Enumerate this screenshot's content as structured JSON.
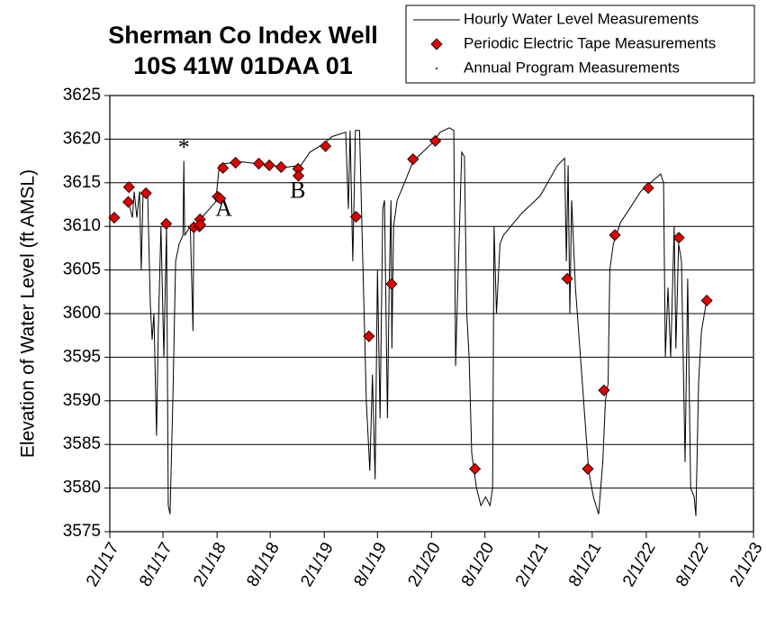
{
  "chart_data": {
    "type": "line",
    "title": [
      "Sherman Co Index Well",
      "10S 41W 01DAA 01"
    ],
    "y_label": "Elevation of Water Level (ft AMSL)",
    "xlim": [
      "2017-02-01",
      "2023-02-01"
    ],
    "xticks": [
      {
        "value": "2017-02-01",
        "label": "2/1/17"
      },
      {
        "value": "2017-08-01",
        "label": "8/1/17"
      },
      {
        "value": "2018-02-01",
        "label": "2/1/18"
      },
      {
        "value": "2018-08-01",
        "label": "8/1/18"
      },
      {
        "value": "2019-02-01",
        "label": "2/1/19"
      },
      {
        "value": "2019-08-01",
        "label": "8/1/19"
      },
      {
        "value": "2020-02-01",
        "label": "2/1/20"
      },
      {
        "value": "2020-08-01",
        "label": "8/1/20"
      },
      {
        "value": "2021-02-01",
        "label": "2/1/21"
      },
      {
        "value": "2021-08-01",
        "label": "8/1/21"
      },
      {
        "value": "2022-02-01",
        "label": "2/1/22"
      },
      {
        "value": "2022-08-01",
        "label": "8/1/22"
      },
      {
        "value": "2023-02-01",
        "label": "2/1/23"
      }
    ],
    "ylim": [
      3575,
      3625
    ],
    "yticks": [
      3575,
      3580,
      3585,
      3590,
      3595,
      3600,
      3605,
      3610,
      3615,
      3620,
      3625
    ],
    "grid": true,
    "legend": "top-right",
    "series": [
      {
        "name": "Hourly Water Level Measurements",
        "type": "line",
        "color": "#000000",
        "x": [
          "2017-04-04",
          "2017-04-19",
          "2017-04-25",
          "2017-05-04",
          "2017-05-13",
          "2017-05-19",
          "2017-05-25",
          "2017-06-10",
          "2017-06-19",
          "2017-06-25",
          "2017-07-01",
          "2017-07-10",
          "2017-07-16",
          "2017-07-25",
          "2017-08-04",
          "2017-08-13",
          "2017-08-19",
          "2017-08-25",
          "2017-09-04",
          "2017-09-13",
          "2017-09-25",
          "2017-10-08",
          "2017-10-11",
          "2017-10-14",
          "2017-11-02",
          "2017-11-11",
          "2017-11-14",
          "2017-12-11",
          "2018-01-27",
          "2018-02-09",
          "2018-02-27",
          "2018-04-27",
          "2018-07-28",
          "2018-09-28",
          "2018-11-14",
          "2018-12-14",
          "2019-01-31",
          "2019-02-28",
          "2019-04-15",
          "2019-04-24",
          "2019-04-30",
          "2019-05-09",
          "2019-05-18",
          "2019-06-01",
          "2019-06-12",
          "2019-06-24",
          "2019-07-06",
          "2019-07-15",
          "2019-07-24",
          "2019-08-01",
          "2019-08-10",
          "2019-08-19",
          "2019-08-25",
          "2019-09-04",
          "2019-09-10",
          "2019-09-16",
          "2019-09-19",
          "2019-09-25",
          "2019-10-07",
          "2019-11-01",
          "2019-12-01",
          "2020-01-02",
          "2020-02-02",
          "2020-03-02",
          "2020-04-02",
          "2020-04-17",
          "2020-04-23",
          "2020-05-02",
          "2020-05-14",
          "2020-05-23",
          "2020-05-31",
          "2020-06-08",
          "2020-06-17",
          "2020-07-03",
          "2020-07-18",
          "2020-08-03",
          "2020-08-18",
          "2020-08-27",
          "2020-09-01",
          "2020-09-09",
          "2020-09-21",
          "2020-10-03",
          "2020-12-04",
          "2021-02-05",
          "2021-04-05",
          "2021-04-29",
          "2021-05-05",
          "2021-05-11",
          "2021-05-17",
          "2021-05-23",
          "2021-06-05",
          "2021-06-20",
          "2021-07-05",
          "2021-07-20",
          "2021-08-05",
          "2021-08-23",
          "2021-09-06",
          "2021-09-15",
          "2021-09-24",
          "2021-09-30",
          "2021-10-12",
          "2021-11-06",
          "2021-12-06",
          "2022-01-13",
          "2022-02-22",
          "2022-03-22",
          "2022-04-01",
          "2022-04-07",
          "2022-04-16",
          "2022-04-25",
          "2022-05-07",
          "2022-05-13",
          "2022-05-22",
          "2022-06-01",
          "2022-06-13",
          "2022-06-22",
          "2022-07-02",
          "2022-07-14",
          "2022-07-20",
          "2022-07-29",
          "2022-08-08",
          "2022-08-23",
          "2022-08-29"
        ],
        "values": [
          3613,
          3611,
          3614,
          3611,
          3614,
          3605,
          3613.8,
          3613.5,
          3601,
          3597,
          3600,
          3586,
          3598,
          3610,
          3595,
          3610,
          3578,
          3577,
          3591,
          3606,
          3608,
          3609,
          3617.5,
          3609,
          3610,
          3598,
          3610,
          3611,
          3612.8,
          3617,
          3617.2,
          3617.4,
          3617,
          3616.8,
          3617,
          3618.5,
          3619.5,
          3620.3,
          3620.8,
          3612,
          3621,
          3606,
          3621,
          3621,
          3606,
          3590,
          3582,
          3593,
          3581,
          3605,
          3588,
          3612,
          3613,
          3588,
          3603,
          3613,
          3596,
          3610,
          3613,
          3615,
          3617.5,
          3618.5,
          3619.5,
          3620.8,
          3621.3,
          3621,
          3594,
          3605,
          3618.5,
          3618,
          3600,
          3595,
          3584,
          3580,
          3578,
          3579,
          3578,
          3580,
          3610,
          3600,
          3608,
          3609,
          3611.5,
          3613.5,
          3617,
          3617.8,
          3606,
          3617,
          3600,
          3613,
          3603,
          3596,
          3589,
          3582,
          3579,
          3577,
          3583,
          3590,
          3592,
          3605,
          3608,
          3610.5,
          3612,
          3614,
          3615.2,
          3616,
          3615,
          3595,
          3603,
          3595,
          3610,
          3596,
          3608,
          3606,
          3583,
          3604,
          3580,
          3579,
          3576.8,
          3592,
          3598,
          3601,
          3602
        ]
      },
      {
        "name": "Periodic Electric Tape Measurements",
        "type": "scatter",
        "marker": "diamond",
        "color": "#e00000",
        "x": [
          "2017-02-16",
          "2017-04-05",
          "2017-04-07",
          "2017-06-04",
          "2017-08-12",
          "2017-11-14",
          "2017-12-03",
          "2017-12-05",
          "2017-12-06",
          "2018-02-03",
          "2018-02-12",
          "2018-02-21",
          "2018-04-05",
          "2018-06-23",
          "2018-07-29",
          "2018-09-07",
          "2018-11-04",
          "2018-11-05",
          "2019-02-05",
          "2019-05-20",
          "2019-07-03",
          "2019-09-18",
          "2019-11-30",
          "2020-02-14",
          "2020-06-28",
          "2021-05-08",
          "2021-07-17",
          "2021-09-10",
          "2021-10-17",
          "2022-02-08",
          "2022-05-23",
          "2022-08-26"
        ],
        "values": [
          3611,
          3612.8,
          3614.5,
          3613.8,
          3610.3,
          3609.9,
          3610,
          3610.8,
          3610.2,
          3613.4,
          3613.2,
          3616.7,
          3617.3,
          3617.2,
          3617,
          3616.8,
          3616.6,
          3615.8,
          3619.2,
          3611.1,
          3597.4,
          3603.4,
          3617.7,
          3619.8,
          3582.2,
          3604,
          3582.2,
          3591.2,
          3609,
          3614.4,
          3608.7,
          3601.5
        ]
      },
      {
        "name": "Annual Program Measurements",
        "type": "scatter",
        "marker": "point",
        "color": "#000000",
        "x": [],
        "values": []
      }
    ],
    "annotations": [
      {
        "text": "*",
        "x": "2017-10-11",
        "y": 3618.8
      },
      {
        "text": "A",
        "x": "2018-02-24",
        "y": 3611.8
      },
      {
        "text": "B",
        "x": "2018-11-03",
        "y": 3613.9
      }
    ]
  }
}
